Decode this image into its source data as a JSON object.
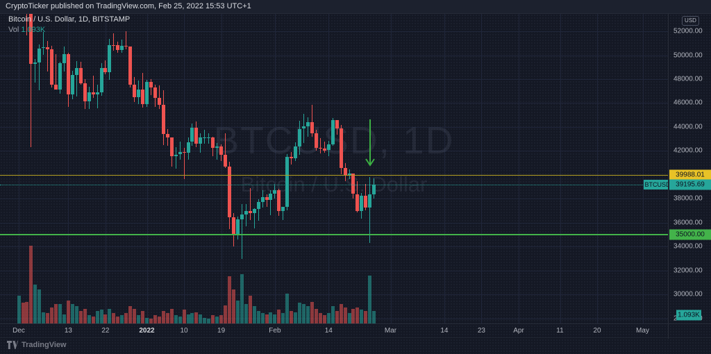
{
  "attribution": {
    "text": "CryptoTicker published on TradingView.com, Feb 25, 2022 15:53 UTC+1"
  },
  "legend": {
    "title": "Bitcoin / U.S. Dollar, 1D, BITSTAMP",
    "vol_label": "Vol",
    "vol_value": "1.093K"
  },
  "watermark": {
    "line1": "BTCUSD, 1D",
    "line2": "Bitcoin / U.S. Dollar"
  },
  "price_axis": {
    "currency_button": "USD",
    "ticks": [
      "52000.00",
      "50000.00",
      "48000.00",
      "46000.00",
      "44000.00",
      "42000.00",
      "38000.00",
      "36000.00",
      "34000.00",
      "32000.00",
      "30000.00",
      "28000.00"
    ]
  },
  "time_axis": {
    "ticks": [
      {
        "label": "Dec",
        "d": 0
      },
      {
        "label": "13",
        "d": 12
      },
      {
        "label": "22",
        "d": 21
      },
      {
        "label": "2022",
        "d": 31,
        "bold": true
      },
      {
        "label": "10",
        "d": 40
      },
      {
        "label": "19",
        "d": 49
      },
      {
        "label": "Feb",
        "d": 62
      },
      {
        "label": "14",
        "d": 75
      },
      {
        "label": "Mar",
        "d": 90
      },
      {
        "label": "14",
        "d": 103
      },
      {
        "label": "23",
        "d": 112
      },
      {
        "label": "Apr",
        "d": 121
      },
      {
        "label": "11",
        "d": 131
      },
      {
        "label": "20",
        "d": 140
      },
      {
        "label": "May",
        "d": 151
      }
    ]
  },
  "overlays": {
    "yellow_level": {
      "price": "39988.01",
      "value": 39988.01
    },
    "green_level": {
      "price": "35000.00",
      "value": 35000.0
    },
    "last_price": {
      "symbol": "BTCUSD",
      "price": "39195.69",
      "value": 39195.69
    },
    "volume_tag": {
      "value": "1.093K"
    },
    "down_arrow": {
      "x_date": "Feb 24",
      "points_to": "long lower wick candle"
    }
  },
  "logo": {
    "text": "TradingView"
  },
  "colors": {
    "background": "#141824",
    "up": "#26a69a",
    "down": "#ef5350",
    "yellow_line": "#b5a021",
    "yellow_label_bg": "#e8c227",
    "green_line": "#43b34a",
    "green_label_bg": "#43b34a",
    "teal_label_bg": "#26a69a",
    "arrow_green": "#3cb043",
    "axis_text": "#b2b5be"
  },
  "chart_data": {
    "type": "candlestick_with_volume",
    "symbol": "BTCUSD",
    "exchange": "BITSTAMP",
    "interval": "1D",
    "title": "Bitcoin / U.S. Dollar",
    "price_range_visible": [
      27800,
      52400
    ],
    "grid": true,
    "date_range": {
      "start": "Dec 1, 2021",
      "end": "Feb 25, 2022",
      "axis_extends_to": "May 2022"
    },
    "last_volume_k": 1.093,
    "dates_note": "87 daily candles, Dec 1 2021 through Feb 25 2022 (values in USD, volumes in K BTC)",
    "ohlc": [
      [
        56950,
        59100,
        56450,
        57200
      ],
      [
        57200,
        57400,
        55650,
        56500
      ],
      [
        56500,
        57600,
        51680,
        53600
      ],
      [
        53600,
        53850,
        42330,
        49250
      ],
      [
        49250,
        49700,
        47700,
        49400
      ],
      [
        49400,
        50900,
        47100,
        50580
      ],
      [
        50580,
        51940,
        50050,
        50650
      ],
      [
        50650,
        51200,
        48650,
        50500
      ],
      [
        50500,
        50800,
        47320,
        47550
      ],
      [
        47550,
        50100,
        47250,
        47150
      ],
      [
        47150,
        49470,
        46750,
        49350
      ],
      [
        49350,
        50750,
        48650,
        50100
      ],
      [
        50100,
        50200,
        45670,
        46700
      ],
      [
        46700,
        48700,
        46290,
        48350
      ],
      [
        48350,
        49500,
        46550,
        48900
      ],
      [
        48900,
        49430,
        47510,
        47650
      ],
      [
        47650,
        47990,
        45470,
        46150
      ],
      [
        46150,
        47350,
        45520,
        46900
      ],
      [
        46900,
        48300,
        46420,
        46700
      ],
      [
        46700,
        47520,
        45560,
        46900
      ],
      [
        46900,
        49320,
        46620,
        48900
      ],
      [
        48900,
        49550,
        48420,
        48600
      ],
      [
        48600,
        51375,
        47920,
        50850
      ],
      [
        50850,
        51810,
        50380,
        50820
      ],
      [
        50820,
        51150,
        50180,
        50430
      ],
      [
        50430,
        51280,
        50190,
        50800
      ],
      [
        50800,
        52000,
        50480,
        50700
      ],
      [
        50700,
        50710,
        47320,
        47550
      ],
      [
        47550,
        48150,
        46080,
        46470
      ],
      [
        46470,
        47900,
        45920,
        47120
      ],
      [
        47120,
        48550,
        45650,
        45900
      ],
      [
        45900,
        47950,
        45680,
        47750
      ],
      [
        47750,
        47990,
        46640,
        47300
      ],
      [
        47300,
        47560,
        45690,
        46450
      ],
      [
        46450,
        47500,
        45500,
        45850
      ],
      [
        45850,
        47070,
        42480,
        43400
      ],
      [
        43400,
        43800,
        42440,
        43100
      ],
      [
        43100,
        43120,
        40670,
        41550
      ],
      [
        41550,
        42310,
        40490,
        41700
      ],
      [
        41700,
        42760,
        41280,
        41900
      ],
      [
        41900,
        42250,
        39650,
        41850
      ],
      [
        41850,
        43120,
        41270,
        42750
      ],
      [
        42750,
        44300,
        42440,
        43950
      ],
      [
        43950,
        44450,
        42340,
        42600
      ],
      [
        42600,
        43460,
        41830,
        43100
      ],
      [
        43100,
        43790,
        42590,
        43100
      ],
      [
        43100,
        43480,
        42610,
        43100
      ],
      [
        43100,
        43190,
        41540,
        42250
      ],
      [
        42250,
        42690,
        41270,
        42375
      ],
      [
        42375,
        42550,
        41160,
        41650
      ],
      [
        41650,
        43480,
        40570,
        40700
      ],
      [
        40700,
        41070,
        35440,
        36450
      ],
      [
        36450,
        36830,
        34008,
        35080
      ],
      [
        35080,
        36540,
        34620,
        36280
      ],
      [
        36280,
        37550,
        32950,
        36700
      ],
      [
        36700,
        37540,
        35710,
        37000
      ],
      [
        37000,
        38900,
        36240,
        36800
      ],
      [
        36800,
        37230,
        35510,
        37150
      ],
      [
        37150,
        37950,
        36150,
        37750
      ],
      [
        37750,
        38720,
        37260,
        38150
      ],
      [
        38150,
        38360,
        37340,
        37900
      ],
      [
        37900,
        38740,
        36630,
        38450
      ],
      [
        38450,
        39250,
        38040,
        38700
      ],
      [
        38700,
        38860,
        36580,
        36950
      ],
      [
        36950,
        37350,
        36240,
        37300
      ],
      [
        37300,
        41720,
        37030,
        41500
      ],
      [
        41500,
        41920,
        40840,
        41400
      ],
      [
        41400,
        42700,
        41120,
        42400
      ],
      [
        42400,
        44500,
        41680,
        43850
      ],
      [
        43850,
        45100,
        42660,
        44050
      ],
      [
        44050,
        44820,
        43170,
        44400
      ],
      [
        44400,
        45850,
        43180,
        43500
      ],
      [
        43500,
        43750,
        41990,
        42250
      ],
      [
        42250,
        43050,
        41770,
        42200
      ],
      [
        42200,
        42760,
        41870,
        42050
      ],
      [
        42050,
        42860,
        41560,
        42550
      ],
      [
        42550,
        44750,
        42460,
        44550
      ],
      [
        44550,
        44580,
        43340,
        43900
      ],
      [
        43900,
        44200,
        40080,
        40550
      ],
      [
        40550,
        40960,
        39450,
        40000
      ],
      [
        40000,
        40450,
        39640,
        40100
      ],
      [
        40100,
        40130,
        38040,
        38400
      ],
      [
        38400,
        39490,
        36840,
        37000
      ],
      [
        37000,
        38460,
        36350,
        38250
      ],
      [
        38250,
        39240,
        37040,
        37250
      ],
      [
        37250,
        39850,
        34300,
        38350
      ],
      [
        38350,
        39700,
        38040,
        39195.69
      ]
    ],
    "volumes_k": [
      2.4,
      1.8,
      1.9,
      6.8,
      3.4,
      3.0,
      1.0,
      0.9,
      1.4,
      1.7,
      1.7,
      0.8,
      2.0,
      1.7,
      1.5,
      1.1,
      1.3,
      0.7,
      0.6,
      1.1,
      1.2,
      0.8,
      1.3,
      0.9,
      0.6,
      0.7,
      0.9,
      1.5,
      1.3,
      0.7,
      1.1,
      0.5,
      0.4,
      0.7,
      0.6,
      1.1,
      0.9,
      1.3,
      0.7,
      0.6,
      1.2,
      0.8,
      0.9,
      1.0,
      0.8,
      0.5,
      0.4,
      0.7,
      0.6,
      0.7,
      1.6,
      4.1,
      3.0,
      2.0,
      4.3,
      1.7,
      2.4,
      1.5,
      1.1,
      0.9,
      0.8,
      1.0,
      0.8,
      1.2,
      0.9,
      2.6,
      1.1,
      1.0,
      1.8,
      1.7,
      1.5,
      1.9,
      1.3,
      0.9,
      0.7,
      0.9,
      1.5,
      1.1,
      1.7,
      1.4,
      0.9,
      1.3,
      1.4,
      1.2,
      1.1,
      4.2,
      1.093
    ]
  }
}
